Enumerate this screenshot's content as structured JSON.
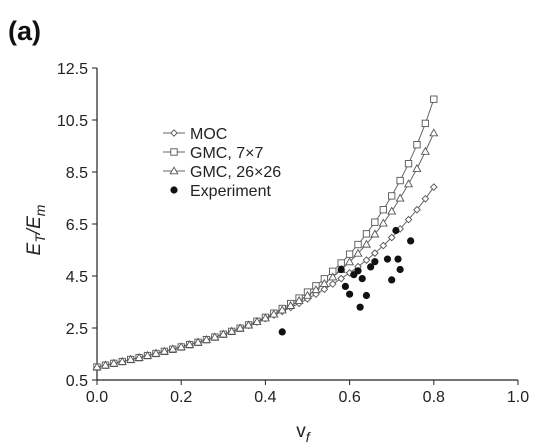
{
  "panel_label": "(a)",
  "chart_data": {
    "type": "scatter",
    "xlabel_main": "v",
    "xlabel_sub": "f",
    "ylabel_main": "E",
    "ylabel_sub1": "T",
    "ylabel_mid": "/E",
    "ylabel_sub2": "m",
    "xlim": [
      0.0,
      1.0
    ],
    "ylim": [
      0.5,
      12.5
    ],
    "x_ticks": [
      0.0,
      0.2,
      0.4,
      0.6,
      0.8,
      1.0
    ],
    "x_tick_labels": [
      "0.0",
      "0.2",
      "0.4",
      "0.6",
      "0.8",
      "1.0"
    ],
    "y_ticks": [
      0.5,
      2.5,
      4.5,
      6.5,
      8.5,
      10.5,
      12.5
    ],
    "y_tick_labels": [
      "0.5",
      "2.5",
      "4.5",
      "6.5",
      "8.5",
      "10.5",
      "12.5"
    ],
    "grid": false,
    "legend_position": "upper-left",
    "series": [
      {
        "name": "MOC",
        "marker": "diamond",
        "line": true,
        "x": [
          0.0,
          0.02,
          0.04,
          0.06,
          0.08,
          0.1,
          0.12,
          0.14,
          0.16,
          0.18,
          0.2,
          0.22,
          0.24,
          0.26,
          0.28,
          0.3,
          0.32,
          0.34,
          0.36,
          0.38,
          0.4,
          0.42,
          0.44,
          0.46,
          0.48,
          0.5,
          0.52,
          0.54,
          0.56,
          0.58,
          0.6,
          0.62,
          0.64,
          0.66,
          0.68,
          0.7,
          0.72,
          0.74,
          0.76,
          0.78,
          0.8
        ],
        "y": [
          1.0,
          1.07,
          1.14,
          1.22,
          1.29,
          1.37,
          1.45,
          1.53,
          1.61,
          1.69,
          1.78,
          1.87,
          1.96,
          2.06,
          2.16,
          2.26,
          2.37,
          2.49,
          2.6,
          2.73,
          2.86,
          3.0,
          3.14,
          3.29,
          3.45,
          3.62,
          3.8,
          3.99,
          4.19,
          4.4,
          4.62,
          4.86,
          5.11,
          5.38,
          5.67,
          5.98,
          6.31,
          6.67,
          7.05,
          7.47,
          7.92
        ]
      },
      {
        "name": "GMC, 7×7",
        "marker": "square",
        "line": true,
        "x": [
          0.0,
          0.02,
          0.04,
          0.06,
          0.08,
          0.1,
          0.12,
          0.14,
          0.16,
          0.18,
          0.2,
          0.22,
          0.24,
          0.26,
          0.28,
          0.3,
          0.32,
          0.34,
          0.36,
          0.38,
          0.4,
          0.42,
          0.44,
          0.46,
          0.48,
          0.5,
          0.52,
          0.54,
          0.56,
          0.58,
          0.6,
          0.62,
          0.64,
          0.66,
          0.68,
          0.7,
          0.72,
          0.74,
          0.76,
          0.78,
          0.8
        ],
        "y": [
          1.0,
          1.07,
          1.14,
          1.21,
          1.29,
          1.36,
          1.44,
          1.52,
          1.6,
          1.68,
          1.77,
          1.86,
          1.95,
          2.05,
          2.15,
          2.26,
          2.37,
          2.49,
          2.62,
          2.76,
          2.91,
          3.07,
          3.25,
          3.44,
          3.65,
          3.88,
          4.12,
          4.39,
          4.68,
          5.0,
          5.34,
          5.71,
          6.12,
          6.57,
          7.05,
          7.58,
          8.17,
          8.82,
          9.55,
          10.37,
          11.3
        ]
      },
      {
        "name": "GMC, 26×26",
        "marker": "triangle",
        "line": true,
        "x": [
          0.0,
          0.02,
          0.04,
          0.06,
          0.08,
          0.1,
          0.12,
          0.14,
          0.16,
          0.18,
          0.2,
          0.22,
          0.24,
          0.26,
          0.28,
          0.3,
          0.32,
          0.34,
          0.36,
          0.38,
          0.4,
          0.42,
          0.44,
          0.46,
          0.48,
          0.5,
          0.52,
          0.54,
          0.56,
          0.58,
          0.6,
          0.62,
          0.64,
          0.66,
          0.68,
          0.7,
          0.72,
          0.74,
          0.76,
          0.78,
          0.8
        ],
        "y": [
          1.0,
          1.07,
          1.14,
          1.21,
          1.29,
          1.36,
          1.44,
          1.52,
          1.6,
          1.69,
          1.77,
          1.86,
          1.95,
          2.05,
          2.15,
          2.26,
          2.37,
          2.49,
          2.61,
          2.74,
          2.88,
          3.03,
          3.19,
          3.36,
          3.55,
          3.75,
          3.97,
          4.21,
          4.46,
          4.74,
          5.04,
          5.37,
          5.72,
          6.11,
          6.53,
          6.99,
          7.49,
          8.04,
          8.63,
          9.29,
          10.0
        ]
      },
      {
        "name": "Experiment",
        "marker": "filled-circle",
        "line": false,
        "x": [
          0.44,
          0.58,
          0.59,
          0.6,
          0.61,
          0.62,
          0.625,
          0.63,
          0.64,
          0.65,
          0.66,
          0.69,
          0.7,
          0.71,
          0.715,
          0.72,
          0.745
        ],
        "y": [
          2.35,
          4.75,
          4.1,
          3.8,
          4.55,
          4.7,
          3.3,
          4.4,
          3.75,
          4.85,
          5.05,
          5.15,
          4.35,
          6.25,
          5.15,
          4.75,
          5.85
        ]
      }
    ]
  }
}
